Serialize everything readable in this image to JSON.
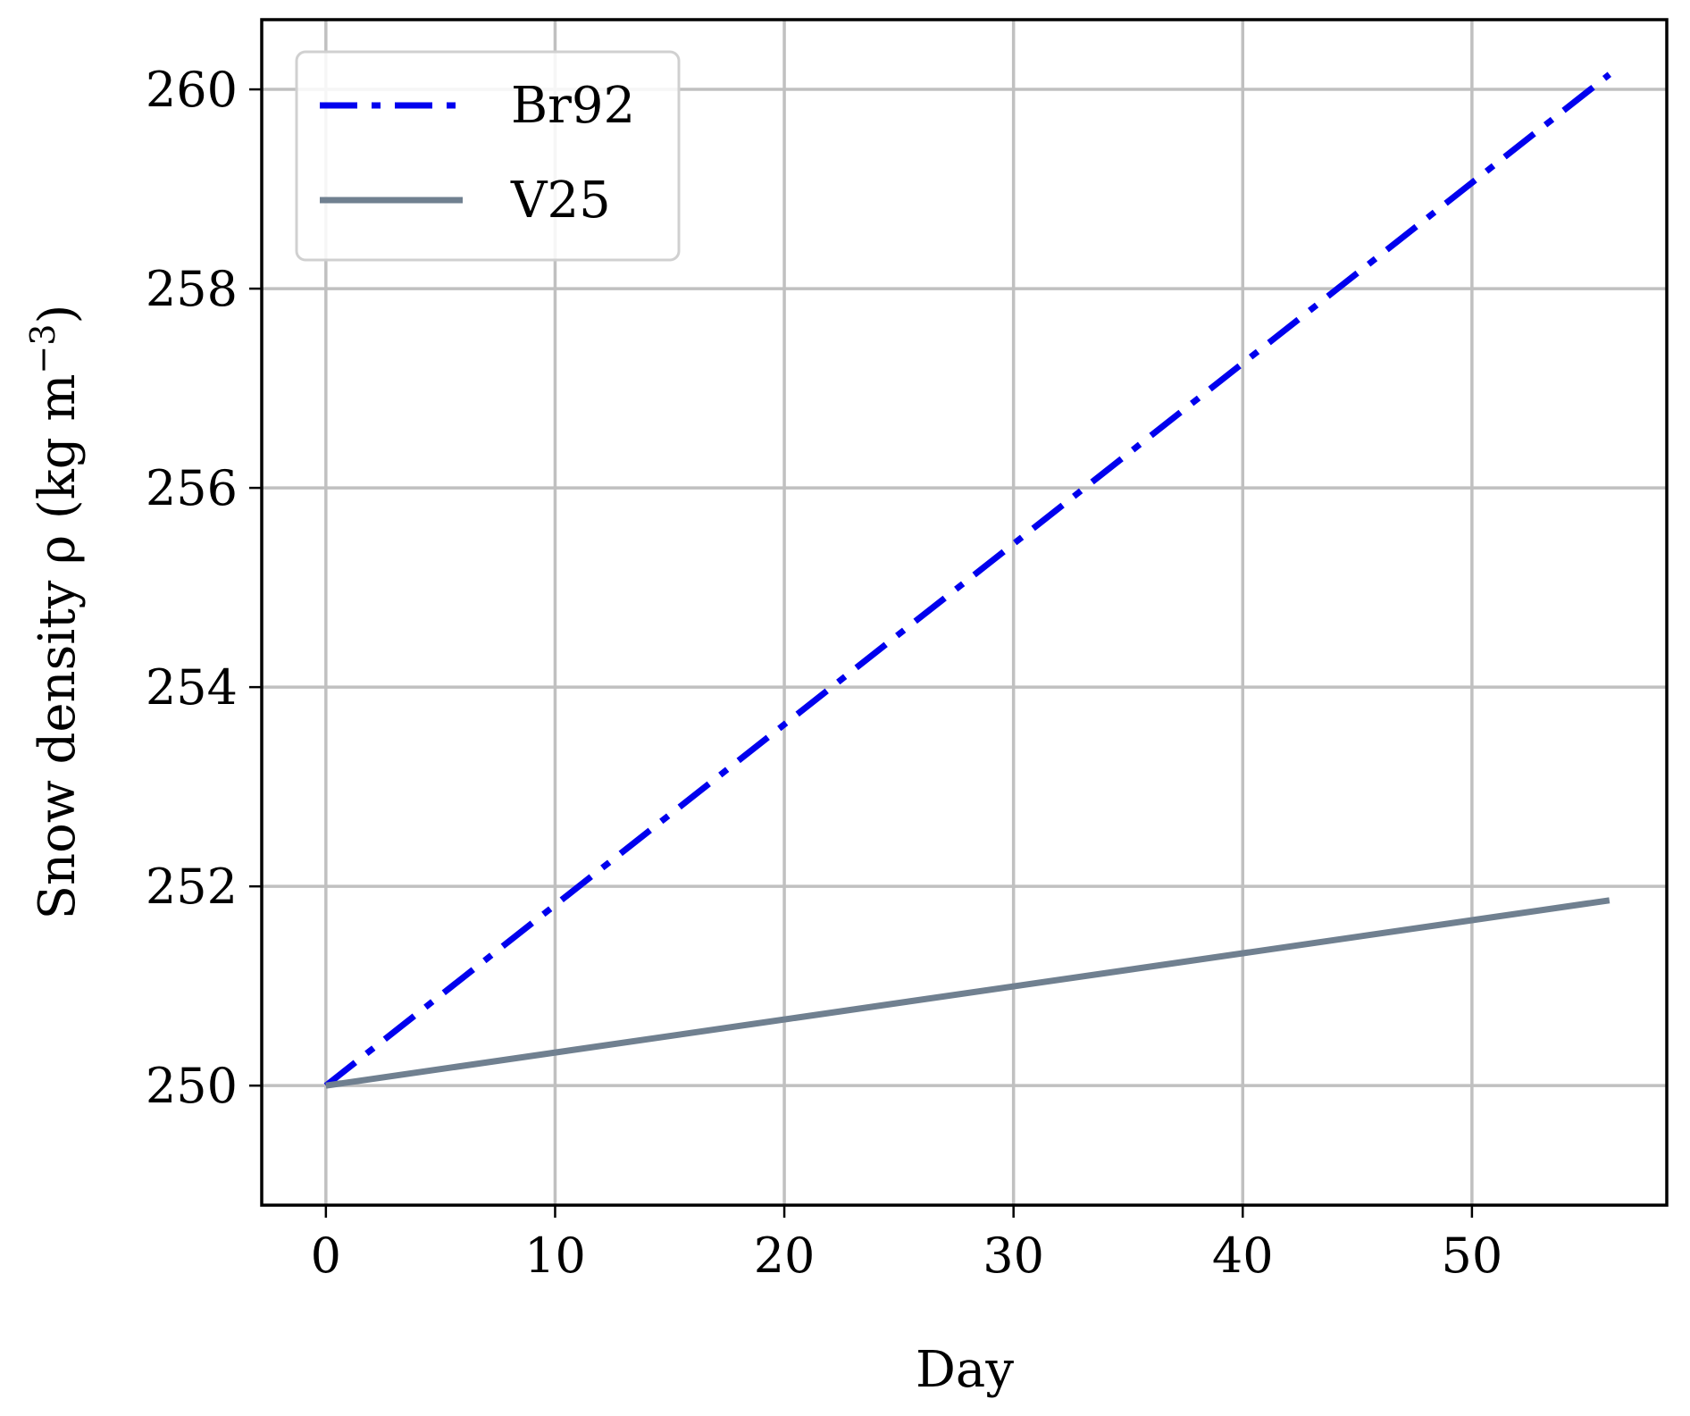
{
  "chart_data": {
    "type": "line",
    "title": "",
    "xlabel": "Day",
    "ylabel_prefix": "Snow density ρ (kg m",
    "ylabel_exponent": "−3",
    "ylabel_suffix": ")",
    "xlim": [
      -2.8,
      58.5
    ],
    "ylim": [
      248.8,
      260.7
    ],
    "x_ticks": [
      0,
      10,
      20,
      30,
      40,
      50
    ],
    "y_ticks": [
      250,
      252,
      254,
      256,
      258,
      260
    ],
    "grid": true,
    "legend_position": "upper-left",
    "series": [
      {
        "name": "Br92",
        "color": "#0000ee",
        "style": "dashdot",
        "x": [
          0,
          56
        ],
        "y": [
          250.0,
          260.15
        ]
      },
      {
        "name": "V25",
        "color": "#708090",
        "style": "solid",
        "x": [
          0,
          56
        ],
        "y": [
          250.0,
          251.86
        ]
      }
    ]
  }
}
